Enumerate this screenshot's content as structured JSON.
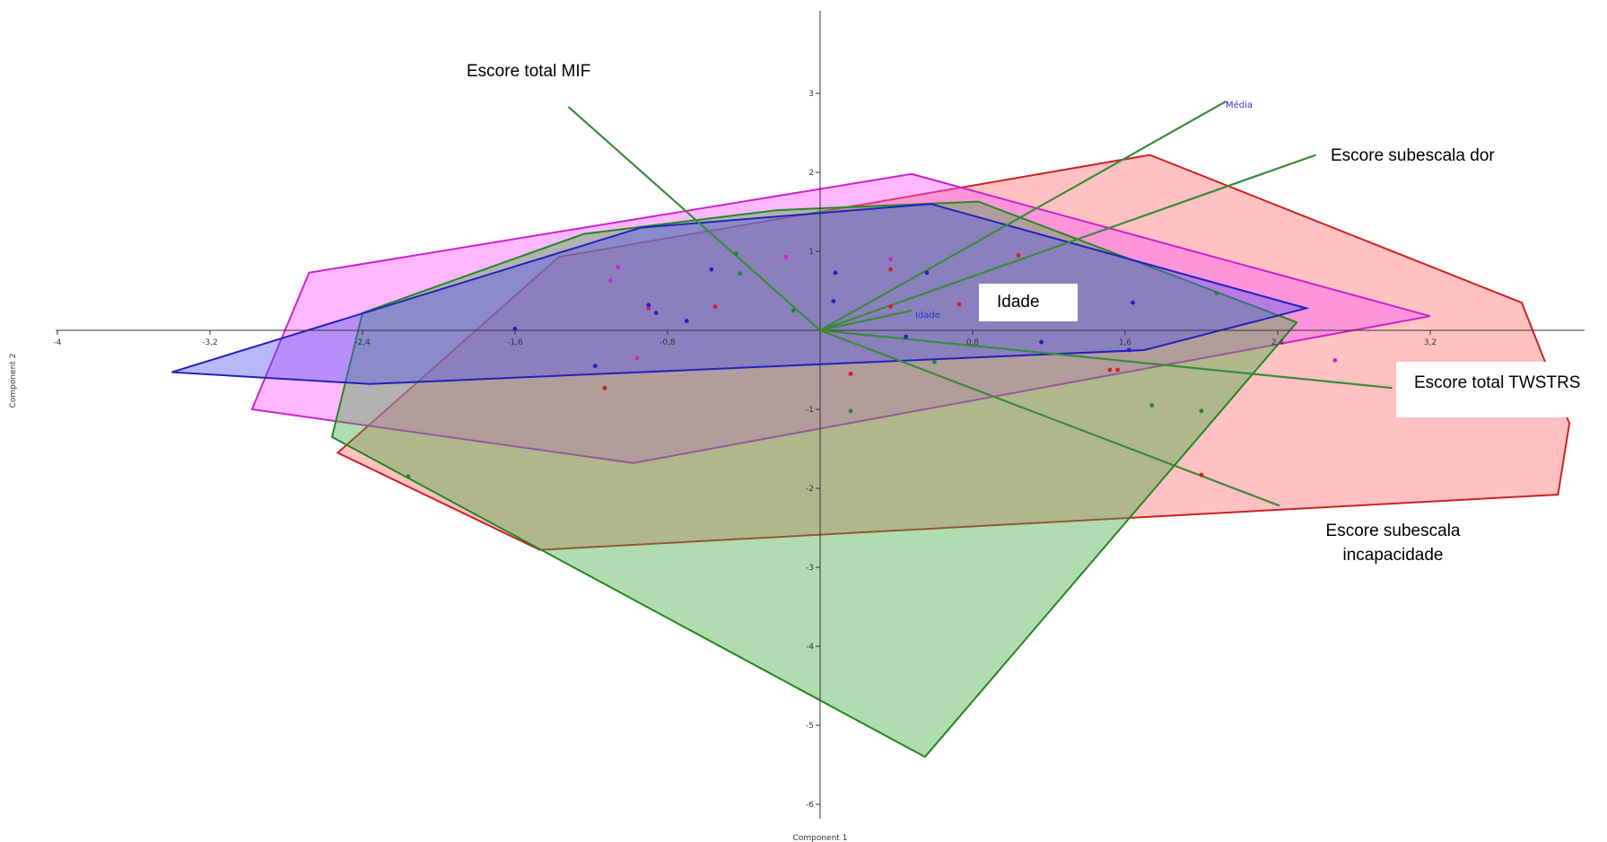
{
  "chart_data": {
    "type": "scatter",
    "xlabel": "Component 1",
    "ylabel": "Component 2",
    "xlim": [
      -4.2,
      4.0
    ],
    "ylim": [
      -6.2,
      4.0
    ],
    "x_ticks": [
      {
        "value": -4,
        "label": "-4"
      },
      {
        "value": -3.2,
        "label": "-3,2"
      },
      {
        "value": -2.4,
        "label": "-2,4"
      },
      {
        "value": -1.6,
        "label": "-1,6"
      },
      {
        "value": -0.8,
        "label": "-0,8"
      },
      {
        "value": 0.8,
        "label": "0,8"
      },
      {
        "value": 1.6,
        "label": "1,6"
      },
      {
        "value": 2.4,
        "label": "2,4"
      },
      {
        "value": 3.2,
        "label": "3,2"
      }
    ],
    "y_ticks": [
      {
        "value": 3,
        "label": "3"
      },
      {
        "value": 2,
        "label": "2"
      },
      {
        "value": 1,
        "label": "1"
      },
      {
        "value": -1,
        "label": "-1"
      },
      {
        "value": -2,
        "label": "-2"
      },
      {
        "value": -3,
        "label": "-3"
      },
      {
        "value": -4,
        "label": "-4"
      },
      {
        "value": -5,
        "label": "-5"
      },
      {
        "value": -6,
        "label": "-6"
      }
    ],
    "groups": [
      {
        "color": "#ff6b6b",
        "stroke": "#cc2222",
        "hull": [
          [
            -2.53,
            -1.55
          ],
          [
            -1.37,
            0.93
          ],
          [
            1.73,
            2.22
          ],
          [
            3.68,
            0.35
          ],
          [
            3.93,
            -1.18
          ],
          [
            3.87,
            -2.08
          ],
          [
            -1.47,
            -2.78
          ]
        ],
        "points": [
          [
            -1.13,
            -0.73
          ],
          [
            -0.9,
            0.28
          ],
          [
            -0.55,
            0.3
          ],
          [
            0.37,
            0.77
          ],
          [
            0.37,
            0.3
          ],
          [
            0.73,
            0.33
          ],
          [
            1.04,
            0.95
          ],
          [
            1.52,
            -0.5
          ],
          [
            1.56,
            -0.5
          ],
          [
            0.16,
            -0.55
          ],
          [
            2.0,
            -1.83
          ]
        ]
      },
      {
        "color": "#ff55ff",
        "stroke": "#cc22cc",
        "hull": [
          [
            -2.98,
            -1.0
          ],
          [
            -2.68,
            0.73
          ],
          [
            0.48,
            1.98
          ],
          [
            3.2,
            0.18
          ],
          [
            -0.98,
            -1.68
          ]
        ],
        "points": [
          [
            -1.1,
            0.63
          ],
          [
            -1.06,
            0.8
          ],
          [
            -0.96,
            -0.35
          ],
          [
            -0.9,
            0.3
          ],
          [
            -0.18,
            0.93
          ],
          [
            0.37,
            0.9
          ],
          [
            2.7,
            -0.38
          ]
        ]
      },
      {
        "color": "#44aa44",
        "stroke": "#228822",
        "hull": [
          [
            -2.56,
            -1.35
          ],
          [
            -2.4,
            0.22
          ],
          [
            -1.24,
            1.22
          ],
          [
            -0.23,
            1.52
          ],
          [
            0.83,
            1.63
          ],
          [
            2.5,
            0.1
          ],
          [
            0.55,
            -5.4
          ]
        ],
        "points": [
          [
            -0.44,
            0.97
          ],
          [
            -0.42,
            0.72
          ],
          [
            -0.14,
            0.25
          ],
          [
            0.6,
            -0.4
          ],
          [
            0.16,
            -1.02
          ],
          [
            1.74,
            -0.95
          ],
          [
            2.0,
            -1.02
          ],
          [
            2.08,
            0.47
          ],
          [
            -2.16,
            -1.85
          ]
        ]
      },
      {
        "color": "#5555ee",
        "stroke": "#2222bb",
        "hull": [
          [
            -3.4,
            -0.53
          ],
          [
            -2.36,
            -0.68
          ],
          [
            1.7,
            -0.25
          ],
          [
            2.55,
            0.28
          ],
          [
            0.58,
            1.6
          ],
          [
            -0.94,
            1.3
          ]
        ],
        "points": [
          [
            -1.6,
            0.02
          ],
          [
            -1.18,
            -0.45
          ],
          [
            -0.9,
            0.32
          ],
          [
            -0.86,
            0.22
          ],
          [
            -0.7,
            0.12
          ],
          [
            -0.57,
            0.77
          ],
          [
            0.07,
            0.37
          ],
          [
            0.08,
            0.73
          ],
          [
            0.45,
            -0.08
          ],
          [
            0.56,
            0.73
          ],
          [
            1.16,
            -0.15
          ],
          [
            1.64,
            0.35
          ],
          [
            1.62,
            -0.25
          ]
        ]
      }
    ],
    "vectors": [
      {
        "name": "Escore total MIF",
        "end": [
          -1.32,
          2.83
        ],
        "label_at": [
          -1.4,
          3.25
        ]
      },
      {
        "name": "Média",
        "end": [
          2.13,
          2.9
        ]
      },
      {
        "name": "Escore subescala dor",
        "end": [
          2.6,
          2.22
        ]
      },
      {
        "name": "Idade",
        "end": [
          0.48,
          0.25
        ]
      },
      {
        "name": "Escore total TWSTRS",
        "end": [
          3.0,
          -0.73
        ]
      },
      {
        "name": "Escore subescala incapacidade",
        "end": [
          2.41,
          -2.22
        ]
      }
    ],
    "vector_color": "#3a8a3a"
  },
  "callouts": {
    "mif": "Escore total MIF",
    "dor": "Escore subescala dor",
    "idade": "Idade",
    "twstrs": "Escore total TWSTRS",
    "incap_1": "Escore subescala",
    "incap_2": "incapacidade"
  },
  "small_labels": {
    "media": "Média",
    "idade": "Idade"
  }
}
